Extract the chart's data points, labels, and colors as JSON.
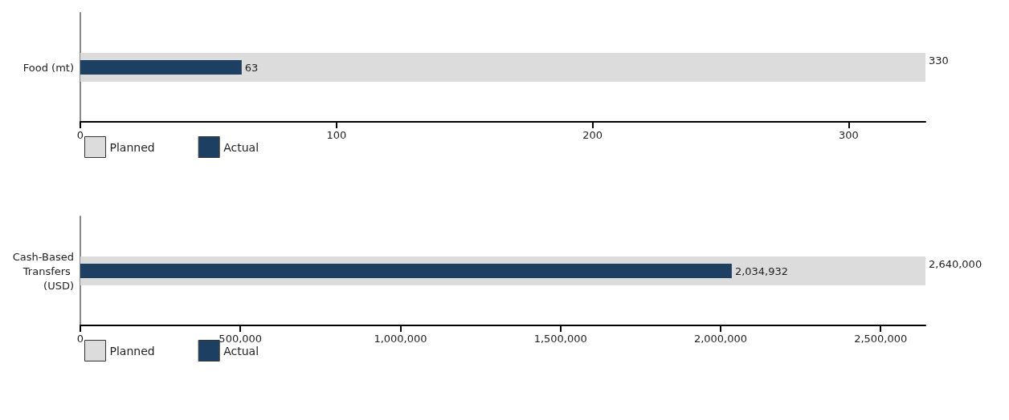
{
  "chart_data": [
    {
      "type": "bar",
      "orientation": "horizontal",
      "categories": [
        "Food (mt)"
      ],
      "series": [
        {
          "name": "Planned",
          "color": "#dcdcdc",
          "values": [
            330
          ],
          "value_labels": [
            "330"
          ]
        },
        {
          "name": "Actual",
          "color": "#1d4062",
          "values": [
            63
          ],
          "value_labels": [
            "63"
          ]
        }
      ],
      "xlim": [
        0,
        330
      ],
      "xticks": [
        0,
        100,
        200,
        300
      ],
      "grid": false,
      "legend": "bottom left"
    },
    {
      "type": "bar",
      "orientation": "horizontal",
      "categories": [
        "Cash-Based Transfers (USD)"
      ],
      "series": [
        {
          "name": "Planned",
          "color": "#dcdcdc",
          "values": [
            2640000
          ],
          "value_labels": [
            "2,640,000"
          ]
        },
        {
          "name": "Actual",
          "color": "#1d4062",
          "values": [
            2034932
          ],
          "value_labels": [
            "2,034,932"
          ]
        }
      ],
      "xlim": [
        0,
        2640000
      ],
      "xticks": [
        0,
        {
          "value": 500000,
          "label": "500,000"
        },
        {
          "value": 1000000,
          "label": "1,000,000"
        },
        {
          "value": 1500000,
          "label": "1,500,000"
        },
        {
          "value": 2000000,
          "label": "2,000,000"
        },
        {
          "value": 2500000,
          "label": "2,500,000"
        }
      ],
      "grid": false,
      "legend": "bottom left"
    }
  ]
}
